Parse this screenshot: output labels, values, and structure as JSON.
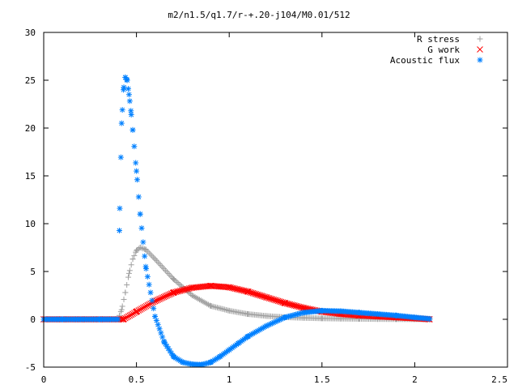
{
  "chart_data": {
    "type": "scatter",
    "title": "m2/n1.5/q1.7/r-+.20-j104/M0.01/512",
    "xlabel": "",
    "ylabel": "",
    "xlim": [
      0,
      2.5
    ],
    "ylim": [
      -5,
      30
    ],
    "xticks": [
      "0",
      "0.5",
      "1",
      "1.5",
      "2",
      "2.5"
    ],
    "yticks": [
      "-5",
      "0",
      "5",
      "10",
      "15",
      "20",
      "25",
      "30"
    ],
    "grid": false,
    "legend_position": "top-right",
    "series": [
      {
        "name": "R stress",
        "marker": "plus",
        "color": "#a0a0a0",
        "x": [
          0.0,
          0.1,
          0.2,
          0.3,
          0.4,
          0.42,
          0.44,
          0.46,
          0.48,
          0.5,
          0.52,
          0.55,
          0.6,
          0.7,
          0.8,
          0.9,
          1.0,
          1.1,
          1.2,
          1.3,
          1.4,
          1.5,
          1.6,
          1.7,
          1.8,
          1.9,
          2.0,
          2.08
        ],
        "y": [
          0,
          0,
          0,
          0,
          0,
          1.0,
          2.8,
          4.8,
          6.3,
          7.2,
          7.5,
          7.3,
          6.3,
          4.2,
          2.5,
          1.4,
          0.9,
          0.55,
          0.35,
          0.22,
          0.15,
          0.1,
          0.07,
          0.05,
          0.03,
          0.02,
          0.01,
          0.0
        ]
      },
      {
        "name": "G work",
        "marker": "cross",
        "color": "#ff0000",
        "x": [
          0.0,
          0.1,
          0.2,
          0.3,
          0.4,
          0.43,
          0.5,
          0.6,
          0.7,
          0.8,
          0.9,
          1.0,
          1.1,
          1.2,
          1.3,
          1.4,
          1.5,
          1.6,
          1.7,
          1.8,
          1.9,
          2.0,
          2.08
        ],
        "y": [
          0,
          0,
          0,
          0,
          0,
          0.0,
          0.8,
          1.9,
          2.8,
          3.3,
          3.5,
          3.35,
          2.9,
          2.3,
          1.7,
          1.2,
          0.8,
          0.55,
          0.4,
          0.3,
          0.2,
          0.1,
          0.0
        ]
      },
      {
        "name": "Acoustic flux",
        "marker": "star",
        "color": "#0080ff",
        "x": [
          0.0,
          0.1,
          0.2,
          0.3,
          0.4,
          0.41,
          0.42,
          0.43,
          0.44,
          0.45,
          0.46,
          0.47,
          0.48,
          0.5,
          0.52,
          0.55,
          0.6,
          0.65,
          0.7,
          0.75,
          0.8,
          0.85,
          0.9,
          0.95,
          1.0,
          1.05,
          1.1,
          1.2,
          1.3,
          1.4,
          1.5,
          1.6,
          1.7,
          1.8,
          1.9,
          2.0,
          2.08
        ],
        "y": [
          0,
          0,
          0,
          0,
          0,
          11.6,
          20.5,
          24.0,
          25.3,
          25.0,
          23.5,
          21.8,
          19.8,
          15.5,
          11.0,
          5.5,
          0.3,
          -2.4,
          -3.9,
          -4.5,
          -4.7,
          -4.75,
          -4.5,
          -3.9,
          -3.2,
          -2.5,
          -1.8,
          -0.7,
          0.2,
          0.7,
          0.9,
          0.85,
          0.7,
          0.55,
          0.4,
          0.2,
          0.05
        ]
      }
    ]
  }
}
